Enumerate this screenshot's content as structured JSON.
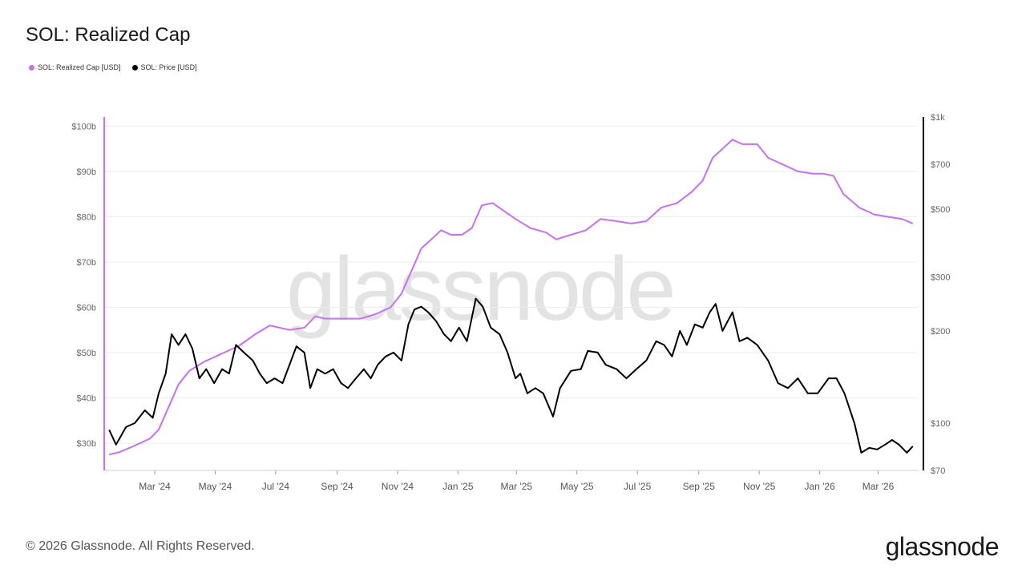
{
  "header": {
    "title": "SOL: Realized Cap"
  },
  "legend": [
    {
      "label": "SOL: Realized Cap [USD]",
      "color": "#c770f0"
    },
    {
      "label": "SOL: Price [USD]",
      "color": "#000000"
    }
  ],
  "footer": {
    "copyright": "© 2026 Glassnode. All Rights Reserved.",
    "brand": "glassnode"
  },
  "watermark": "glassnode",
  "chart_data": {
    "type": "line",
    "title": "SOL: Realized Cap",
    "x_ticks": [
      "Mar '24",
      "May '24",
      "Jul '24",
      "Sep '24",
      "Nov '24",
      "Jan '25",
      "Mar '25",
      "May '25",
      "Jul '25",
      "Sep '25",
      "Nov '25",
      "Jan '26",
      "Mar '26"
    ],
    "x_range": [
      "2024-01-10",
      "2026-04-10"
    ],
    "y_left": {
      "ticks": [
        "$30b",
        "$40b",
        "$50b",
        "$60b",
        "$70b",
        "$80b",
        "$90b",
        "$100b"
      ],
      "values": [
        30,
        40,
        50,
        60,
        70,
        80,
        90,
        100
      ],
      "range": [
        24,
        102
      ],
      "unit": "USD billions"
    },
    "y_right": {
      "scale": "log",
      "ticks": [
        "$70",
        "$100",
        "$200",
        "$300",
        "$500",
        "$700",
        "$1k"
      ],
      "values": [
        70,
        100,
        200,
        300,
        500,
        700,
        1000
      ],
      "range": [
        70,
        1000
      ],
      "unit": "USD"
    },
    "grid": true,
    "legend_position": "top-left",
    "series": [
      {
        "name": "SOL: Realized Cap [USD]",
        "axis": "left",
        "color": "#c770f0",
        "points": [
          [
            "2024-01-15",
            27.5
          ],
          [
            "2024-01-25",
            28
          ],
          [
            "2024-02-10",
            29.5
          ],
          [
            "2024-02-25",
            31
          ],
          [
            "2024-03-05",
            33
          ],
          [
            "2024-03-15",
            38
          ],
          [
            "2024-03-25",
            43
          ],
          [
            "2024-04-05",
            46
          ],
          [
            "2024-04-20",
            48
          ],
          [
            "2024-05-10",
            50
          ],
          [
            "2024-05-25",
            51.5
          ],
          [
            "2024-06-10",
            54
          ],
          [
            "2024-06-25",
            56
          ],
          [
            "2024-07-15",
            55
          ],
          [
            "2024-07-30",
            55.5
          ],
          [
            "2024-08-10",
            58
          ],
          [
            "2024-08-20",
            57.5
          ],
          [
            "2024-09-05",
            57.5
          ],
          [
            "2024-09-25",
            57.5
          ],
          [
            "2024-10-10",
            58.5
          ],
          [
            "2024-10-25",
            60
          ],
          [
            "2024-11-05",
            63
          ],
          [
            "2024-11-15",
            68
          ],
          [
            "2024-11-25",
            73
          ],
          [
            "2024-12-05",
            75
          ],
          [
            "2024-12-15",
            77
          ],
          [
            "2024-12-25",
            76
          ],
          [
            "2025-01-05",
            76
          ],
          [
            "2025-01-15",
            77.5
          ],
          [
            "2025-01-25",
            82.5
          ],
          [
            "2025-02-05",
            83
          ],
          [
            "2025-02-15",
            81.5
          ],
          [
            "2025-02-28",
            79.5
          ],
          [
            "2025-03-15",
            77.5
          ],
          [
            "2025-03-31",
            76.5
          ],
          [
            "2025-04-10",
            75
          ],
          [
            "2025-04-25",
            76
          ],
          [
            "2025-05-10",
            77
          ],
          [
            "2025-05-25",
            79.5
          ],
          [
            "2025-06-10",
            79
          ],
          [
            "2025-06-25",
            78.5
          ],
          [
            "2025-07-10",
            79
          ],
          [
            "2025-07-25",
            82
          ],
          [
            "2025-08-10",
            83
          ],
          [
            "2025-08-25",
            85.5
          ],
          [
            "2025-09-05",
            88
          ],
          [
            "2025-09-15",
            93
          ],
          [
            "2025-09-25",
            95
          ],
          [
            "2025-10-05",
            97
          ],
          [
            "2025-10-15",
            96
          ],
          [
            "2025-10-30",
            96
          ],
          [
            "2025-11-10",
            93
          ],
          [
            "2025-11-25",
            91.5
          ],
          [
            "2025-12-10",
            90
          ],
          [
            "2025-12-25",
            89.5
          ],
          [
            "2026-01-05",
            89.5
          ],
          [
            "2026-01-15",
            89
          ],
          [
            "2026-01-25",
            85
          ],
          [
            "2026-02-10",
            82
          ],
          [
            "2026-02-25",
            80.5
          ],
          [
            "2026-03-10",
            80
          ],
          [
            "2026-03-25",
            79.5
          ],
          [
            "2026-04-05",
            78.5
          ]
        ]
      },
      {
        "name": "SOL: Price [USD]",
        "axis": "right",
        "color": "#000000",
        "points": [
          [
            "2024-01-15",
            95
          ],
          [
            "2024-01-22",
            85
          ],
          [
            "2024-02-01",
            97
          ],
          [
            "2024-02-10",
            100
          ],
          [
            "2024-02-20",
            110
          ],
          [
            "2024-02-28",
            104
          ],
          [
            "2024-03-05",
            125
          ],
          [
            "2024-03-12",
            145
          ],
          [
            "2024-03-18",
            195
          ],
          [
            "2024-03-25",
            180
          ],
          [
            "2024-04-01",
            195
          ],
          [
            "2024-04-08",
            175
          ],
          [
            "2024-04-15",
            140
          ],
          [
            "2024-04-22",
            150
          ],
          [
            "2024-04-30",
            135
          ],
          [
            "2024-05-08",
            150
          ],
          [
            "2024-05-15",
            145
          ],
          [
            "2024-05-22",
            180
          ],
          [
            "2024-05-30",
            170
          ],
          [
            "2024-06-08",
            160
          ],
          [
            "2024-06-15",
            145
          ],
          [
            "2024-06-22",
            135
          ],
          [
            "2024-06-30",
            140
          ],
          [
            "2024-07-08",
            135
          ],
          [
            "2024-07-15",
            155
          ],
          [
            "2024-07-22",
            178
          ],
          [
            "2024-07-30",
            170
          ],
          [
            "2024-08-05",
            130
          ],
          [
            "2024-08-12",
            150
          ],
          [
            "2024-08-20",
            145
          ],
          [
            "2024-08-28",
            150
          ],
          [
            "2024-09-05",
            135
          ],
          [
            "2024-09-12",
            130
          ],
          [
            "2024-09-20",
            140
          ],
          [
            "2024-09-28",
            150
          ],
          [
            "2024-10-05",
            140
          ],
          [
            "2024-10-12",
            155
          ],
          [
            "2024-10-20",
            165
          ],
          [
            "2024-10-28",
            170
          ],
          [
            "2024-11-05",
            160
          ],
          [
            "2024-11-12",
            210
          ],
          [
            "2024-11-18",
            235
          ],
          [
            "2024-11-25",
            240
          ],
          [
            "2024-12-02",
            230
          ],
          [
            "2024-12-10",
            215
          ],
          [
            "2024-12-18",
            195
          ],
          [
            "2024-12-25",
            185
          ],
          [
            "2025-01-02",
            205
          ],
          [
            "2025-01-10",
            185
          ],
          [
            "2025-01-19",
            255
          ],
          [
            "2025-01-26",
            240
          ],
          [
            "2025-02-03",
            205
          ],
          [
            "2025-02-12",
            195
          ],
          [
            "2025-02-20",
            170
          ],
          [
            "2025-02-28",
            140
          ],
          [
            "2025-03-05",
            145
          ],
          [
            "2025-03-12",
            125
          ],
          [
            "2025-03-20",
            130
          ],
          [
            "2025-03-28",
            125
          ],
          [
            "2025-04-07",
            105
          ],
          [
            "2025-04-14",
            130
          ],
          [
            "2025-04-25",
            148
          ],
          [
            "2025-05-05",
            150
          ],
          [
            "2025-05-12",
            172
          ],
          [
            "2025-05-22",
            170
          ],
          [
            "2025-05-30",
            155
          ],
          [
            "2025-06-10",
            150
          ],
          [
            "2025-06-20",
            140
          ],
          [
            "2025-06-30",
            150
          ],
          [
            "2025-07-10",
            160
          ],
          [
            "2025-07-20",
            185
          ],
          [
            "2025-07-28",
            180
          ],
          [
            "2025-08-05",
            165
          ],
          [
            "2025-08-13",
            200
          ],
          [
            "2025-08-20",
            180
          ],
          [
            "2025-08-28",
            210
          ],
          [
            "2025-09-05",
            205
          ],
          [
            "2025-09-12",
            230
          ],
          [
            "2025-09-18",
            245
          ],
          [
            "2025-09-25",
            200
          ],
          [
            "2025-10-05",
            230
          ],
          [
            "2025-10-12",
            185
          ],
          [
            "2025-10-20",
            190
          ],
          [
            "2025-10-30",
            180
          ],
          [
            "2025-11-10",
            160
          ],
          [
            "2025-11-20",
            135
          ],
          [
            "2025-11-30",
            130
          ],
          [
            "2025-12-10",
            140
          ],
          [
            "2025-12-20",
            125
          ],
          [
            "2025-12-30",
            125
          ],
          [
            "2026-01-10",
            140
          ],
          [
            "2026-01-18",
            140
          ],
          [
            "2026-01-26",
            125
          ],
          [
            "2026-02-05",
            100
          ],
          [
            "2026-02-12",
            80
          ],
          [
            "2026-02-20",
            83
          ],
          [
            "2026-02-28",
            82
          ],
          [
            "2026-03-08",
            85
          ],
          [
            "2026-03-15",
            88
          ],
          [
            "2026-03-22",
            85
          ],
          [
            "2026-03-30",
            80
          ],
          [
            "2026-04-05",
            84
          ]
        ]
      }
    ]
  }
}
